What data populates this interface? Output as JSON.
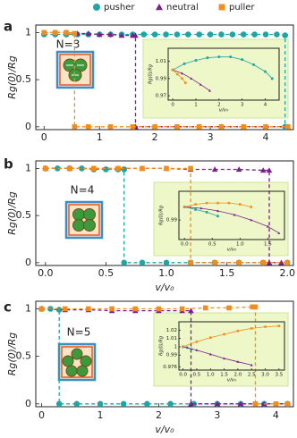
{
  "legend": [
    {
      "name": "pusher",
      "color": "#1fa5a5",
      "marker": "circle"
    },
    {
      "name": "neutral",
      "color": "#7a1f8c",
      "marker": "triangle"
    },
    {
      "name": "puller",
      "color": "#f28c1a",
      "marker": "square"
    }
  ],
  "chart_data": [
    {
      "type": "line",
      "label": "a",
      "annotation": "N=3",
      "y_label": "Rg(0)/Rg",
      "xlim": [
        -0.15,
        4.5
      ],
      "xticks": [
        0,
        1,
        2,
        3,
        4
      ],
      "ylim": [
        -0.03,
        1.08
      ],
      "yticks": [
        0,
        0.5,
        1
      ],
      "series": [
        {
          "x": [
            0,
            0.2,
            0.4,
            0.6,
            0.8,
            1,
            1.2,
            1.4,
            1.6,
            1.8,
            2,
            2.2,
            2.4,
            2.6,
            2.8,
            3,
            3.2,
            3.4,
            3.6,
            3.8,
            4,
            4.2,
            4.35,
            4.35
          ],
          "values": [
            0.98,
            0.98,
            0.98,
            0.98,
            0.98,
            0.98,
            0.98,
            0.98,
            0.98,
            0.98,
            0.98,
            0.98,
            0.98,
            0.98,
            0.98,
            0.98,
            0.98,
            0.98,
            0.98,
            0.98,
            0.98,
            0.98,
            0.97,
            0
          ]
        },
        {
          "x": [
            0,
            0.2,
            0.4,
            0.6,
            0.8,
            1,
            1.2,
            1.4,
            1.6,
            1.65,
            1.65,
            2,
            2.4,
            2.8,
            3.2,
            3.6,
            4,
            4.4
          ],
          "values": [
            1,
            1,
            1,
            0.99,
            0.99,
            0.98,
            0.98,
            0.97,
            0.97,
            0.97,
            0,
            0,
            0,
            0,
            0,
            0,
            0,
            0
          ]
        },
        {
          "x": [
            0,
            0.2,
            0.4,
            0.55,
            0.55,
            0.8,
            1.2,
            1.6,
            2,
            2.4,
            2.8,
            3.2,
            3.6,
            4,
            4.4
          ],
          "values": [
            1,
            1,
            1,
            0.99,
            0,
            0,
            0,
            0,
            0,
            0,
            0,
            0,
            0,
            0,
            0
          ]
        }
      ]
    },
    {
      "type": "line",
      "x_label": "v/v₀",
      "y_label": "Rg(0)/Rg",
      "xlim": [
        -0.2,
        4.6
      ],
      "xticks": [
        0,
        1,
        2,
        3,
        4
      ],
      "ylim": [
        0.965,
        1.025
      ],
      "yticks": [
        0.97,
        0.99,
        1.01
      ],
      "series": [
        {
          "x": [
            0,
            0.5,
            1,
            1.5,
            2,
            2.5,
            3,
            3.5,
            4,
            4.3
          ],
          "values": [
            1,
            1.007,
            1.011,
            1.014,
            1.015,
            1.015,
            1.012,
            1.006,
            0.998,
            0.99
          ]
        },
        {
          "x": [
            0,
            0.4,
            0.8,
            1.2,
            1.6
          ],
          "values": [
            1,
            0.996,
            0.99,
            0.983,
            0.976
          ]
        },
        {
          "x": [
            0,
            0.2,
            0.4,
            0.55
          ],
          "values": [
            1,
            0.995,
            0.99,
            0.985
          ]
        }
      ]
    },
    {
      "type": "line",
      "label": "b",
      "annotation": "N=4",
      "x_label": "v/v₀",
      "y_label": "Rg(0)/Rg",
      "xlim": [
        -0.08,
        2.05
      ],
      "xticks": [
        {
          "value": 0,
          "label": "0.0"
        },
        0.5,
        {
          "value": 1,
          "label": "1.0"
        },
        1.5,
        {
          "value": 2,
          "label": "2.0"
        }
      ],
      "ylim": [
        -0.03,
        1.08
      ],
      "yticks": [
        0,
        0.5,
        1
      ],
      "series": [
        {
          "x": [
            0,
            0.1,
            0.2,
            0.3,
            0.4,
            0.5,
            0.6,
            0.65,
            0.65,
            0.8,
            1,
            1.2,
            1.4,
            1.6,
            1.8,
            2
          ],
          "values": [
            1,
            1,
            1,
            1,
            0.99,
            0.99,
            0.99,
            0.99,
            0,
            0,
            0,
            0,
            0,
            0,
            0,
            0
          ]
        },
        {
          "x": [
            0,
            0.2,
            0.4,
            0.6,
            0.8,
            1,
            1.2,
            1.4,
            1.6,
            1.8,
            1.85,
            1.85,
            1.95
          ],
          "values": [
            1,
            1,
            1,
            1,
            1,
            1,
            0.99,
            0.99,
            0.99,
            0.98,
            0.98,
            0,
            0
          ]
        },
        {
          "x": [
            0,
            0.2,
            0.4,
            0.6,
            0.8,
            1,
            1.2,
            1.2,
            1.4,
            1.6,
            1.8,
            2
          ],
          "values": [
            1,
            1,
            1,
            1,
            1,
            1,
            1,
            0,
            0,
            0,
            0,
            0
          ]
        }
      ]
    },
    {
      "type": "line",
      "x_label": "v/v₀",
      "y_label": "Rg(0)/Rg",
      "xlim": [
        -0.1,
        1.8
      ],
      "xticks": [
        {
          "value": 0,
          "label": "0.0"
        },
        0.5,
        {
          "value": 1,
          "label": "1.0"
        },
        1.5
      ],
      "ylim": [
        0.975,
        1.012
      ],
      "yticks": [
        0.99
      ],
      "series": [
        {
          "x": [
            0,
            0.2,
            0.4,
            0.6
          ],
          "values": [
            1,
            0.998,
            0.996,
            0.993
          ]
        },
        {
          "x": [
            0,
            0.3,
            0.6,
            0.9,
            1.2,
            1.5,
            1.7
          ],
          "values": [
            1,
            0.999,
            0.997,
            0.994,
            0.99,
            0.985,
            0.98
          ]
        },
        {
          "x": [
            0,
            0.2,
            0.4,
            0.6,
            0.8,
            1,
            1.2
          ],
          "values": [
            1,
            1.002,
            1.003,
            1.003,
            1.003,
            1.002,
            1
          ]
        }
      ]
    },
    {
      "type": "line",
      "label": "c",
      "annotation": "N=5",
      "x_label": "v/v₀",
      "y_label": "Rg(0)/Rg",
      "xlim": [
        -0.1,
        4.3
      ],
      "xticks": [
        0,
        1,
        2,
        3,
        4
      ],
      "ylim": [
        -0.03,
        1.08
      ],
      "yticks": [
        0,
        0.5,
        1
      ],
      "series": [
        {
          "x": [
            0,
            0.15,
            0.3,
            0.3,
            0.6,
            1,
            1.4,
            1.8,
            2.2,
            2.6,
            3,
            3.4,
            3.8,
            4.2
          ],
          "values": [
            1,
            1,
            0.99,
            0,
            0,
            0,
            0,
            0,
            0,
            0,
            0,
            0,
            0,
            0
          ]
        },
        {
          "x": [
            0,
            0.4,
            0.8,
            1.2,
            1.6,
            2,
            2.4,
            2.55,
            2.55,
            3,
            3.4,
            3.8,
            4.2
          ],
          "values": [
            1,
            0.99,
            0.99,
            0.98,
            0.98,
            0.98,
            0.98,
            0.98,
            0,
            0,
            0,
            0,
            0
          ]
        },
        {
          "x": [
            0,
            0.4,
            0.8,
            1.2,
            1.6,
            2,
            2.4,
            2.8,
            3.2,
            3.6,
            3.65,
            3.65,
            4,
            4.2
          ],
          "values": [
            1,
            1,
            1,
            1,
            1,
            1,
            1,
            1.01,
            1.01,
            1.02,
            1.02,
            0,
            0,
            0
          ]
        }
      ]
    },
    {
      "type": "line",
      "x_label": "v/v₀",
      "y_label": "Rg(0)/Rg",
      "xlim": [
        -0.15,
        3.7
      ],
      "xticks": [
        {
          "value": 0,
          "label": "0.0"
        },
        0.5,
        {
          "value": 1,
          "label": "1.0"
        },
        1.5,
        {
          "value": 2,
          "label": "2.0"
        },
        2.5,
        {
          "value": 3,
          "label": "3.0"
        },
        3.5
      ],
      "ylim": [
        0.972,
        1.03
      ],
      "yticks": [
        0.976,
        0.99,
        1,
        1.01,
        1.02
      ],
      "series": [
        {
          "x": [
            0,
            0.15,
            0.3
          ],
          "values": [
            1,
            0.999,
            0.997
          ]
        },
        {
          "x": [
            0,
            0.5,
            1,
            1.5,
            2,
            2.5
          ],
          "values": [
            1,
            0.996,
            0.991,
            0.986,
            0.982,
            0.978
          ]
        },
        {
          "x": [
            0,
            0.5,
            1,
            1.5,
            2,
            2.5,
            3,
            3.5
          ],
          "values": [
            1,
            1.006,
            1.011,
            1.015,
            1.019,
            1.022,
            1.024,
            1.025
          ]
        }
      ]
    }
  ]
}
